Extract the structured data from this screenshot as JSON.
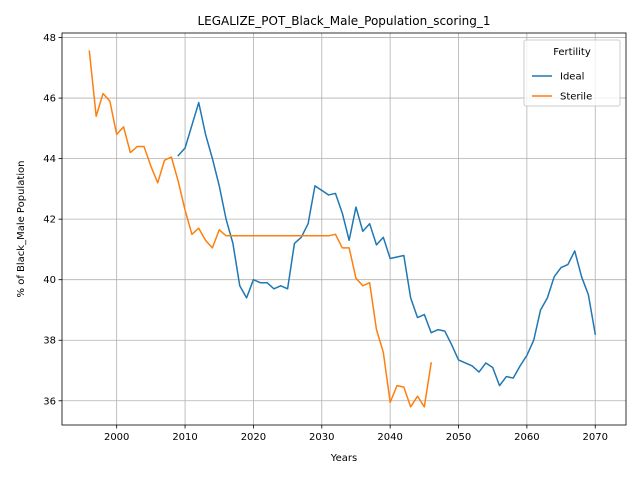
{
  "chart_data": {
    "type": "line",
    "title": "LEGALIZE_POT_Black_Male_Population_scoring_1",
    "xlabel": "Years",
    "ylabel": "% of Black_Male Population",
    "xlim": [
      1992,
      2074.5
    ],
    "ylim": [
      35.2,
      48.15
    ],
    "xticks": [
      2000,
      2010,
      2020,
      2030,
      2040,
      2050,
      2060,
      2070
    ],
    "yticks": [
      36,
      38,
      40,
      42,
      44,
      46,
      48
    ],
    "grid": true,
    "legend": {
      "title": "Fertility",
      "position": "top-right"
    },
    "series": [
      {
        "name": "Ideal",
        "color": "#1f77b4",
        "x": [
          2009,
          2010,
          2011,
          2012,
          2013,
          2014,
          2015,
          2016,
          2017,
          2018,
          2019,
          2020,
          2021,
          2022,
          2023,
          2024,
          2025,
          2026,
          2027,
          2028,
          2029,
          2030,
          2031,
          2032,
          2033,
          2034,
          2035,
          2036,
          2037,
          2038,
          2039,
          2040,
          2041,
          2042,
          2043,
          2044,
          2045,
          2046,
          2047,
          2048,
          2049,
          2050,
          2051,
          2052,
          2053,
          2054,
          2055,
          2056,
          2057,
          2058,
          2059,
          2060,
          2061,
          2062,
          2063,
          2064,
          2065,
          2066,
          2067,
          2068,
          2069,
          2070
        ],
        "y": [
          44.1,
          44.35,
          45.1,
          45.85,
          44.8,
          44.0,
          43.1,
          42.0,
          41.2,
          39.8,
          39.4,
          40.0,
          39.9,
          39.9,
          39.7,
          39.8,
          39.7,
          41.2,
          41.4,
          41.85,
          43.1,
          42.95,
          42.8,
          42.85,
          42.2,
          41.3,
          42.4,
          41.6,
          41.85,
          41.15,
          41.4,
          40.7,
          40.75,
          40.8,
          39.4,
          38.75,
          38.85,
          38.25,
          38.35,
          38.3,
          37.85,
          37.35,
          37.25,
          37.15,
          36.95,
          37.25,
          37.1,
          36.5,
          36.8,
          36.75,
          37.15,
          37.5,
          38.0,
          39.0,
          39.4,
          40.1,
          40.4,
          40.5,
          40.95,
          40.1,
          39.5,
          38.2
        ]
      },
      {
        "name": "Sterile",
        "color": "#ff7f0e",
        "x": [
          1996,
          1997,
          1998,
          1999,
          2000,
          2001,
          2002,
          2003,
          2004,
          2005,
          2006,
          2007,
          2008,
          2009,
          2010,
          2011,
          2012,
          2013,
          2014,
          2015,
          2016,
          2017,
          2018,
          2019,
          2020,
          2021,
          2022,
          2023,
          2024,
          2025,
          2026,
          2027,
          2028,
          2029,
          2030,
          2031,
          2032,
          2033,
          2034,
          2035,
          2036,
          2037,
          2038,
          2039,
          2040,
          2041,
          2042,
          2043,
          2044,
          2045,
          2046
        ],
        "y": [
          47.55,
          45.4,
          46.15,
          45.9,
          44.8,
          45.05,
          44.2,
          44.4,
          44.4,
          43.75,
          43.2,
          43.95,
          44.05,
          43.25,
          42.3,
          41.5,
          41.7,
          41.3,
          41.05,
          41.65,
          41.45,
          41.45,
          41.45,
          41.45,
          41.45,
          41.45,
          41.45,
          41.45,
          41.45,
          41.45,
          41.45,
          41.45,
          41.45,
          41.45,
          41.45,
          41.45,
          41.5,
          41.05,
          41.05,
          40.05,
          39.8,
          39.9,
          38.35,
          37.6,
          35.95,
          36.5,
          36.45,
          35.8,
          36.15,
          35.8,
          37.25
        ]
      }
    ]
  }
}
